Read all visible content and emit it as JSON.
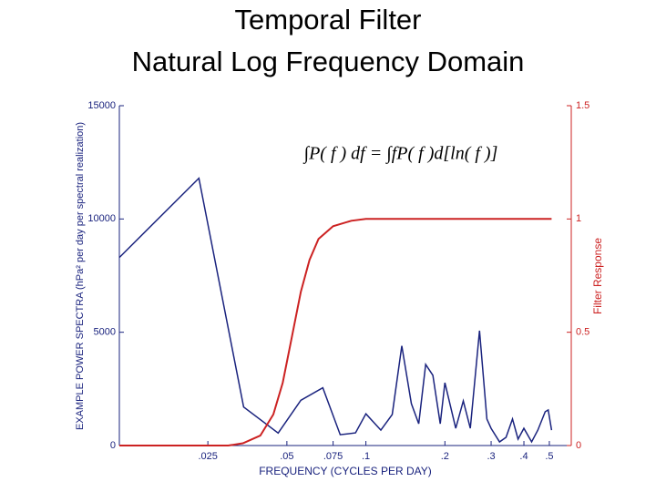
{
  "chart_data": {
    "type": "line",
    "title": "Temporal Filter",
    "subtitle": "Natural Log Frequency Domain",
    "annotation": "∫P( f ) df = ∫fP( f )d[ln( f )]",
    "xlabel": "FREQUENCY (CYCLES PER DAY)",
    "ylabel": "EXAMPLE POWER SPECTRA (hPa² per day per spectral realization)",
    "y2label": "Filter Response",
    "xscale": "log",
    "xlim": [
      0.0115,
      0.606
    ],
    "xticks": [
      {
        "value": 0.025,
        "label": ".025"
      },
      {
        "value": 0.05,
        "label": ".05"
      },
      {
        "value": 0.075,
        "label": ".075"
      },
      {
        "value": 0.1,
        "label": ".1"
      },
      {
        "value": 0.2,
        "label": ".2"
      },
      {
        "value": 0.3,
        "label": ".3"
      },
      {
        "value": 0.4,
        "label": ".4"
      },
      {
        "value": 0.5,
        "label": ".5"
      }
    ],
    "ylim": [
      0,
      15000
    ],
    "yticks": [
      0,
      5000,
      10000,
      15000
    ],
    "y2lim": [
      0,
      1.5
    ],
    "y2ticks": [
      0,
      0.5,
      1,
      1.5
    ],
    "series": [
      {
        "color": "#1a237e",
        "axis": "y",
        "x": [
          0.0115,
          0.0231,
          0.0342,
          0.0463,
          0.0565,
          0.0685,
          0.0798,
          0.0913,
          0.1,
          0.114,
          0.126,
          0.137,
          0.149,
          0.159,
          0.169,
          0.18,
          0.192,
          0.2,
          0.22,
          0.235,
          0.25,
          0.271,
          0.289,
          0.3,
          0.323,
          0.342,
          0.362,
          0.38,
          0.4,
          0.428,
          0.452,
          0.482,
          0.495,
          0.51
        ],
        "values": [
          8300,
          11800,
          1700,
          550,
          2000,
          2550,
          480,
          560,
          1400,
          680,
          1370,
          4400,
          1850,
          960,
          3580,
          3100,
          960,
          2770,
          760,
          1970,
          760,
          5070,
          1170,
          760,
          160,
          360,
          1170,
          280,
          760,
          160,
          680,
          1490,
          1570,
          680
        ]
      },
      {
        "color": "#cc2222",
        "axis": "y2",
        "x": [
          0.0115,
          0.0299,
          0.034,
          0.0396,
          0.0444,
          0.0482,
          0.0522,
          0.0565,
          0.061,
          0.066,
          0.075,
          0.088,
          0.1,
          0.51
        ],
        "values": [
          0,
          0,
          0.01,
          0.044,
          0.137,
          0.277,
          0.478,
          0.679,
          0.819,
          0.912,
          0.968,
          0.992,
          1,
          1
        ]
      }
    ]
  }
}
